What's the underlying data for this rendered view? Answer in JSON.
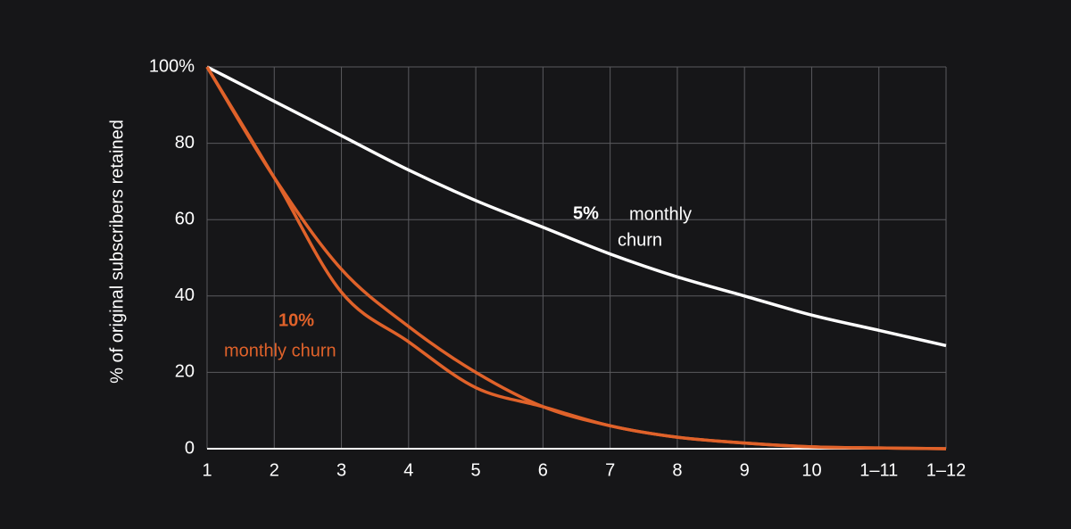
{
  "chart_data": {
    "type": "line",
    "y_label": "% of original subscribers retained",
    "categories": [
      "1",
      "2",
      "3",
      "4",
      "5",
      "6",
      "7",
      "8",
      "9",
      "10",
      "1–11",
      "1–12"
    ],
    "series": [
      {
        "color": "#ffffff",
        "values": [
          100,
          91,
          82,
          73,
          65,
          58,
          51,
          45,
          40,
          35,
          31,
          27
        ]
      },
      {
        "color": "#e0622a",
        "values": [
          100,
          71,
          47,
          32,
          20,
          11,
          6,
          3,
          1.5,
          0.5,
          0.2,
          0
        ]
      },
      {
        "color": "#e0622a",
        "values": [
          100,
          71,
          41,
          28,
          16,
          11,
          6,
          3,
          1.5,
          0.5,
          0.2,
          0
        ]
      }
    ],
    "annotations": [
      {
        "text": "5%",
        "color": "#ffffff"
      },
      {
        "text": "monthly",
        "color": "#ffffff"
      },
      {
        "text": "churn",
        "color": "#ffffff"
      },
      {
        "text": "10%",
        "color": "#e0622a"
      },
      {
        "text": "monthly churn",
        "color": "#e0622a"
      }
    ],
    "ylim": [
      0,
      100
    ],
    "yticks": [
      0,
      20,
      40,
      60,
      80,
      {
        "value": 100,
        "label": "100%"
      }
    ],
    "grid": true
  }
}
